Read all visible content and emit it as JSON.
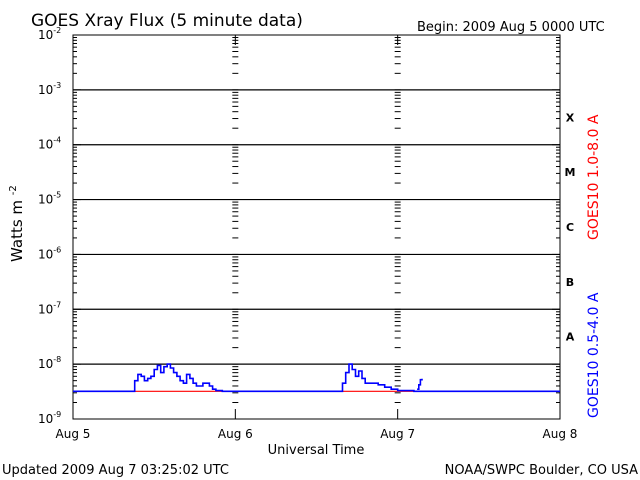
{
  "chart_data": {
    "type": "line",
    "title": "GOES Xray Flux (5 minute data)",
    "begin_label": "Begin:  2009 Aug 5 0000 UTC",
    "xlabel": "Universal Time",
    "ylabel_base": "Watts m",
    "ylabel_exp": "-2",
    "x_ticks": [
      "Aug 5",
      "Aug 6",
      "Aug 7",
      "Aug 8"
    ],
    "xlim_days": [
      0,
      3
    ],
    "y_scale": "log",
    "ylim": [
      1e-09,
      0.01
    ],
    "y_ticks": [
      {
        "base": "10",
        "exp": "-9"
      },
      {
        "base": "10",
        "exp": "-8"
      },
      {
        "base": "10",
        "exp": "-7"
      },
      {
        "base": "10",
        "exp": "-6"
      },
      {
        "base": "10",
        "exp": "-5"
      },
      {
        "base": "10",
        "exp": "-4"
      },
      {
        "base": "10",
        "exp": "-3"
      },
      {
        "base": "10",
        "exp": "-2"
      }
    ],
    "flare_classes": [
      "A",
      "B",
      "C",
      "M",
      "X"
    ],
    "series": [
      {
        "name": "GOES10 1.0-8.0 A",
        "color": "#ff0000",
        "x": [
          0.0,
          3.0
        ],
        "y": [
          3.2e-09,
          3.2e-09
        ]
      },
      {
        "name": "GOES10 0.5-4.0 A",
        "color": "#0000ff",
        "x": [
          0.0,
          0.37,
          0.38,
          0.4,
          0.42,
          0.44,
          0.46,
          0.48,
          0.5,
          0.52,
          0.54,
          0.56,
          0.58,
          0.6,
          0.62,
          0.64,
          0.66,
          0.68,
          0.7,
          0.72,
          0.74,
          0.76,
          0.8,
          0.84,
          0.86,
          0.88,
          0.92,
          0.98,
          1.1,
          1.3,
          1.5,
          1.64,
          1.66,
          1.68,
          1.7,
          1.72,
          1.74,
          1.76,
          1.78,
          1.8,
          1.84,
          1.88,
          1.92,
          1.96,
          2.0,
          2.1,
          2.3,
          2.5,
          2.7,
          2.9,
          3.0
        ],
        "y": [
          3.2e-09,
          3.2e-09,
          5e-09,
          6.5e-09,
          6e-09,
          5e-09,
          5.5e-09,
          6e-09,
          8e-09,
          9.5e-09,
          7e-09,
          9e-09,
          1e-08,
          8.5e-09,
          7e-09,
          6e-09,
          5e-09,
          4.5e-09,
          6.5e-09,
          5.5e-09,
          4.5e-09,
          4e-09,
          4.5e-09,
          4e-09,
          3.5e-09,
          3.3e-09,
          3.2e-09,
          3.2e-09,
          3.2e-09,
          3.2e-09,
          3.2e-09,
          3.2e-09,
          4.5e-09,
          7e-09,
          1e-08,
          8e-09,
          6e-09,
          7.5e-09,
          5.5e-09,
          4.5e-09,
          4.5e-09,
          4.2e-09,
          3.8e-09,
          3.5e-09,
          3.3e-09,
          3.2e-09,
          3.2e-09,
          3.2e-09,
          3.2e-09,
          3.2e-09,
          3.2e-09
        ]
      }
    ],
    "extra_segment": {
      "x": [
        2.12,
        2.13,
        2.14,
        2.15
      ],
      "y": [
        3.5e-09,
        4.2e-09,
        5.2e-09,
        5.4e-09
      ]
    }
  },
  "footer": {
    "updated": "Updated 2009 Aug  7 03:25:02 UTC",
    "credit": "NOAA/SWPC Boulder, CO USA"
  }
}
